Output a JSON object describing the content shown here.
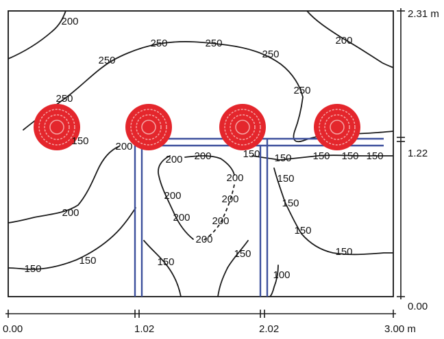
{
  "diagram": {
    "width_axis": {
      "ticks": [
        "0.00",
        "1.02",
        "2.02",
        "3.00 m"
      ]
    },
    "height_axis": {
      "ticks": [
        "2.31 m",
        "1.22",
        "0.00"
      ]
    },
    "contour_labels": [
      "200",
      "250",
      "250",
      "250",
      "250",
      "250",
      "200",
      "250",
      "200",
      "200",
      "150",
      "150",
      "150",
      "200",
      "200",
      "200",
      "200",
      "200",
      "200",
      "200",
      "150",
      "150",
      "150",
      "150",
      "150",
      "150",
      "150",
      "150",
      "100",
      "150",
      "150",
      "150",
      "200"
    ],
    "luminaire_count": 4,
    "colors": {
      "contour": "#1a1a1a",
      "luminaire_fill": "#e4262c",
      "luminaire_ring": "#f4a5a5",
      "partition": "#3c4f9c"
    }
  }
}
